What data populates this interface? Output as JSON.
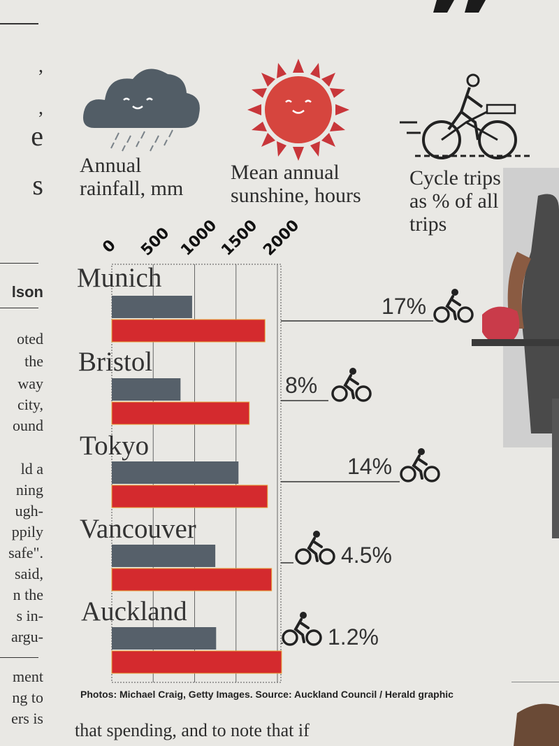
{
  "left_column": {
    "fragments": [
      ",",
      ",",
      "e",
      "s"
    ],
    "byline": "lson",
    "paragraph1": [
      "oted",
      "the",
      "way",
      "city,",
      "ound"
    ],
    "paragraph2": [
      "ld a",
      "ning",
      "ugh-",
      "ppily",
      "safe\".",
      "said,",
      "n the",
      "s in-",
      "argu-"
    ],
    "paragraph3": [
      "ment",
      "ng to",
      "ers is"
    ]
  },
  "legend": {
    "rainfall": [
      "Annual",
      "rainfall, mm"
    ],
    "sunshine": [
      "Mean annual",
      "sunshine, hours"
    ],
    "cycle": [
      "Cycle trips",
      "as % of all",
      "trips"
    ]
  },
  "colors": {
    "rainfall": "#56606a",
    "sunshine": "#d42a2e",
    "bar_outline": "#e8a33a",
    "sun_rays": "#c8363a"
  },
  "icons": [
    "rain-cloud-icon",
    "sun-icon",
    "cyclist-icon",
    "bicycle-icon"
  ],
  "chart_data": {
    "type": "bar",
    "orientation": "horizontal",
    "categories": [
      "Munich",
      "Bristol",
      "Tokyo",
      "Vancouver",
      "Auckland"
    ],
    "series": [
      {
        "name": "Annual rainfall, mm",
        "values": [
          970,
          830,
          1530,
          1250,
          1260
        ]
      },
      {
        "name": "Mean annual sunshine, hours",
        "values": [
          1850,
          1660,
          1880,
          1930,
          2050
        ]
      }
    ],
    "cycle_trips": [
      "17%",
      "8%",
      "14%",
      "4.5%",
      "1.2%"
    ],
    "xticks": [
      "0",
      "500",
      "1000",
      "1500",
      "2000"
    ],
    "xlim": [
      0,
      2050
    ],
    "grid": true
  },
  "credit": "Photos: Michael Craig, Getty Images. Source: Auckland Council / Herald graphic",
  "bottom_text": "that spending, and to note that if"
}
